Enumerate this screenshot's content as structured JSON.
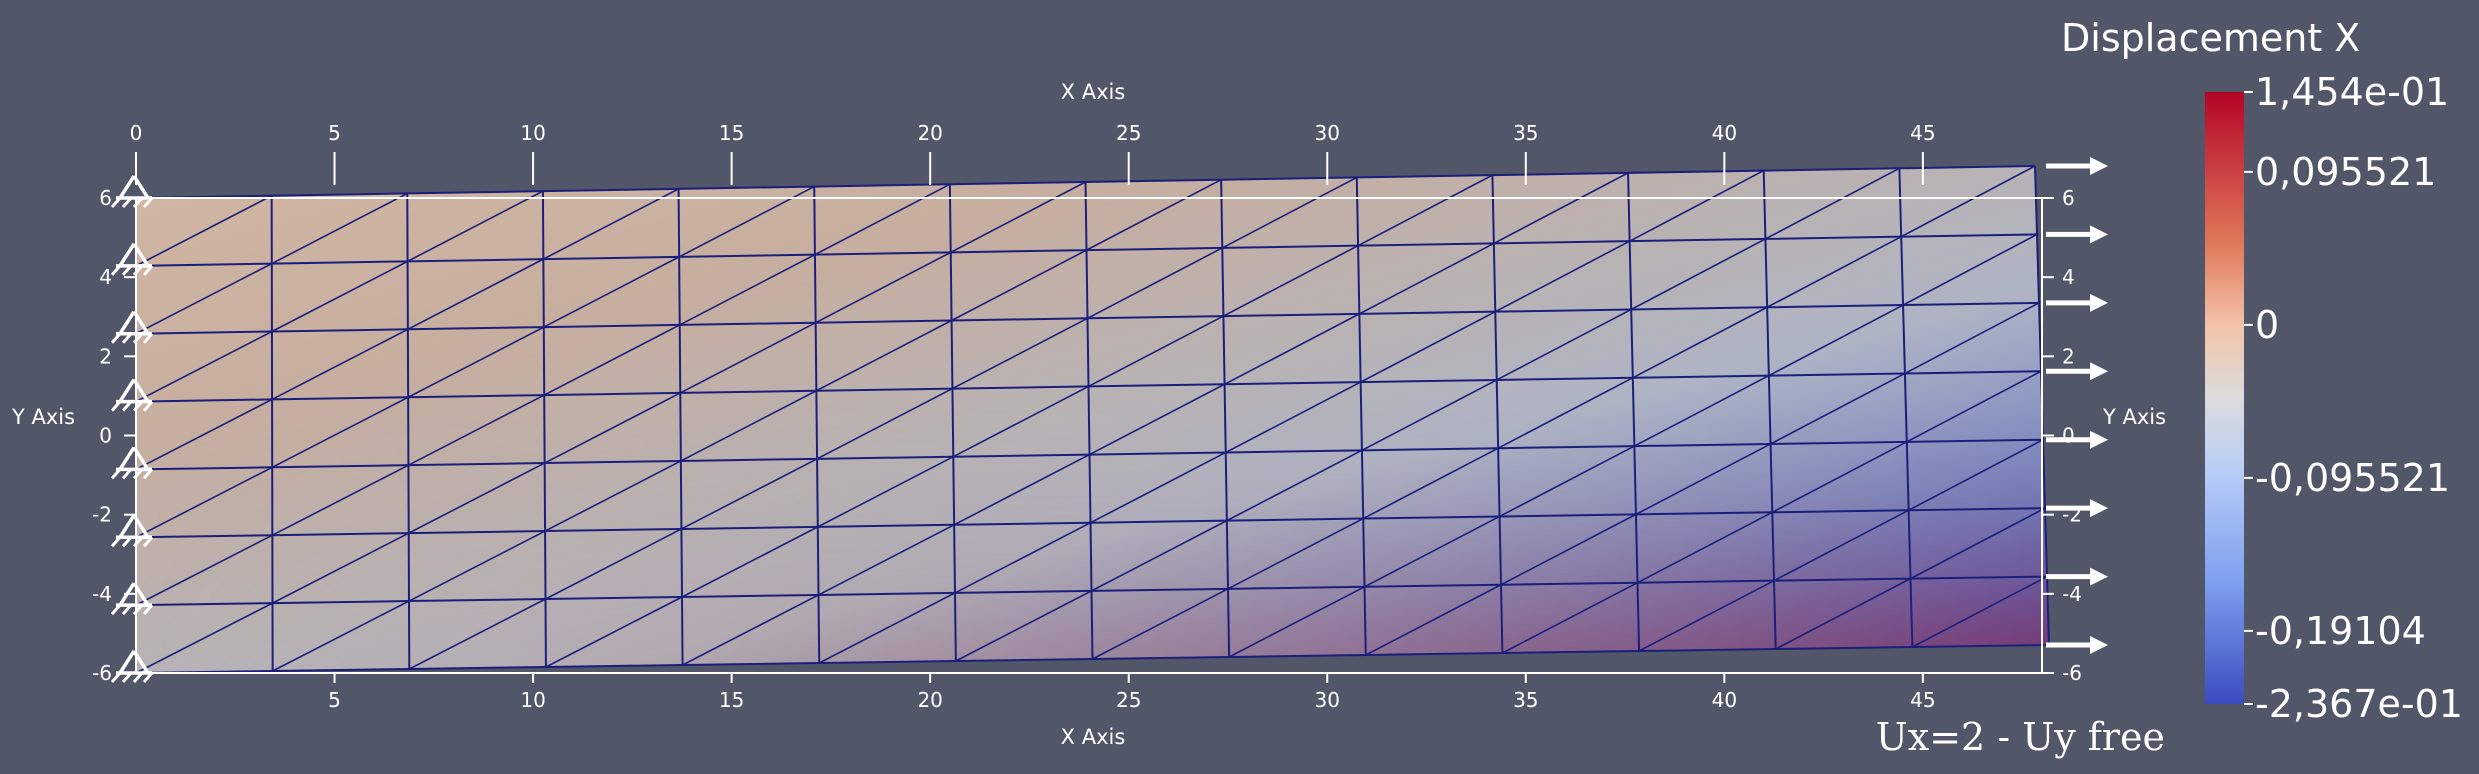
{
  "annotation": "Ux=2 - Uy free",
  "colors": {
    "background": "#525669",
    "mesh_edge": "#1b1f7a",
    "axis": "#ffffff",
    "colormap_low": "#3b4cc0",
    "colormap_mid": "#dddddd",
    "colormap_high": "#b40426"
  },
  "chart_data": {
    "type": "heatmap",
    "title": "Displacement X",
    "field": "Displacement X",
    "x_axis": {
      "label": "X Axis",
      "ticks": [
        "0",
        "5",
        "10",
        "15",
        "20",
        "25",
        "30",
        "35",
        "40",
        "45"
      ],
      "range": [
        0,
        48
      ]
    },
    "y_axis": {
      "label": "Y Axis",
      "ticks": [
        "-6",
        "-4",
        "-2",
        "0",
        "2",
        "4",
        "6"
      ],
      "range": [
        -6,
        6
      ]
    },
    "mesh": {
      "columns": 14,
      "rows": 7,
      "element": "triangle"
    },
    "colorbar": {
      "range": [
        -0.2367,
        0.1454
      ],
      "labels": [
        {
          "text": "1,454e-01",
          "value": 0.1454
        },
        {
          "text": "0,095521",
          "value": 0.095521
        },
        {
          "text": "0",
          "value": 0
        },
        {
          "text": "-0,095521",
          "value": -0.095521
        },
        {
          "text": "-0,19104",
          "value": -0.19104
        },
        {
          "text": "-2,367e-01",
          "value": -0.2367
        }
      ]
    },
    "boundary_conditions": {
      "left_edge": "fixed supports",
      "right_edge": "applied displacement arrows"
    }
  }
}
